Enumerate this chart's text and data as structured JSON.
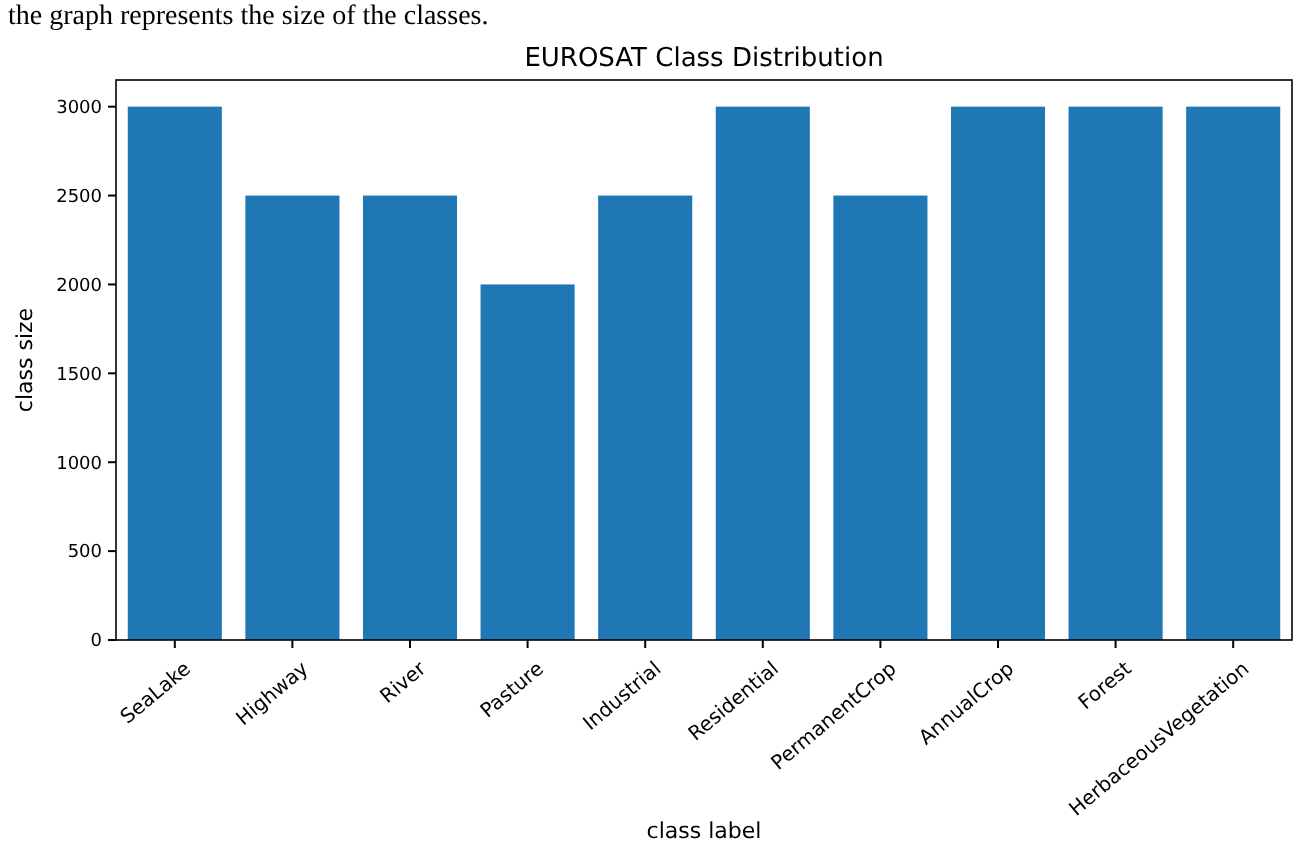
{
  "chart_data": {
    "type": "bar",
    "title": "EUROSAT Class Distribution",
    "xlabel": "class label",
    "ylabel": "class size",
    "annotations": [
      "the graph represents the size of the classes."
    ],
    "categories": [
      "SeaLake",
      "Highway",
      "River",
      "Pasture",
      "Industrial",
      "Residential",
      "PermanentCrop",
      "AnnualCrop",
      "Forest",
      "HerbaceousVegetation"
    ],
    "values": [
      3000,
      2500,
      2500,
      2000,
      2500,
      3000,
      2500,
      3000,
      3000,
      3000
    ],
    "color": "#1f77b4",
    "ylim": [
      0,
      3150
    ],
    "yticks": [
      0,
      500,
      1000,
      1500,
      2000,
      2500,
      3000
    ],
    "grid": false
  }
}
